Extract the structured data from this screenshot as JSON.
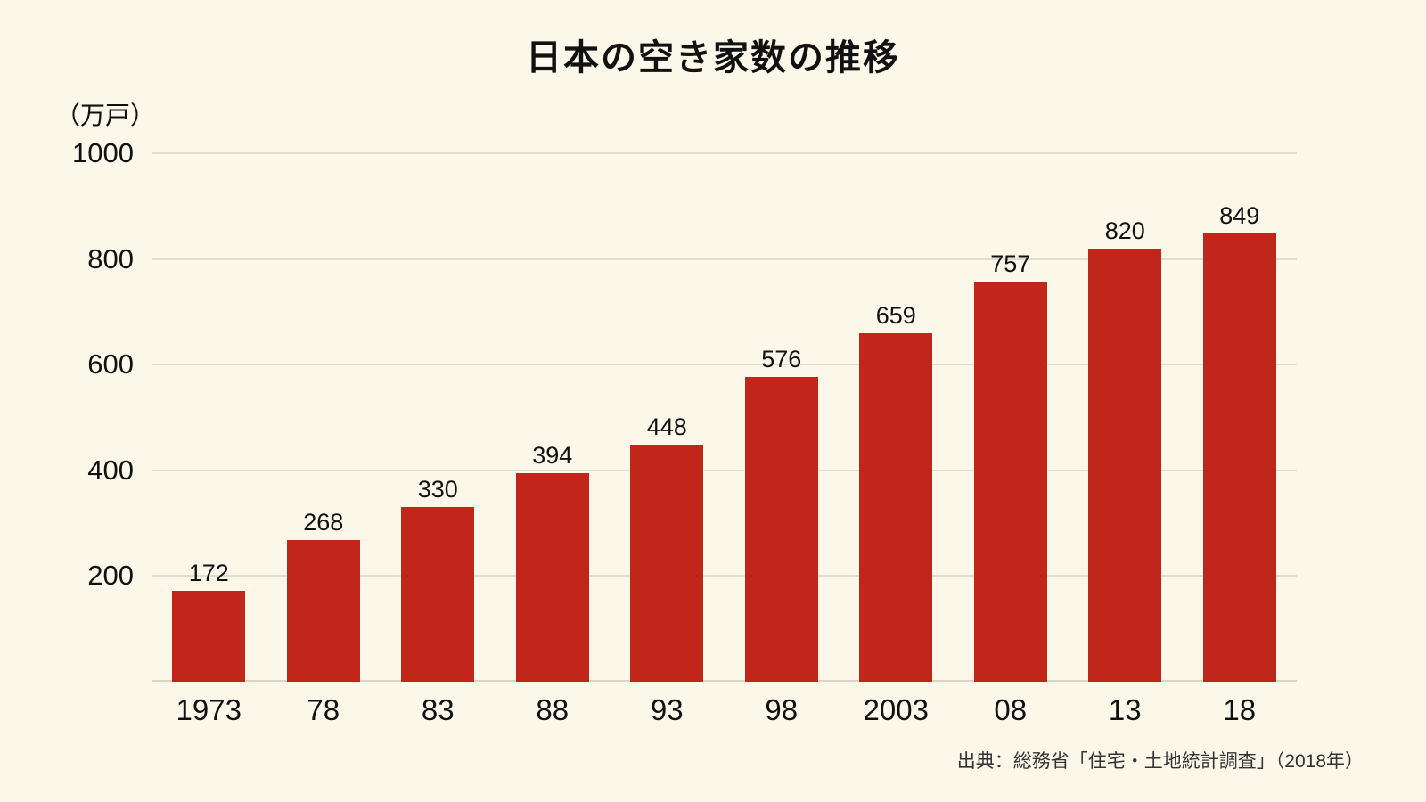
{
  "title": "日本の空き家数の推移",
  "unit_label": "（万戸）",
  "source": "出典：総務省「住宅・土地統計調査」（2018年）",
  "colors": {
    "bar": "#c0271a",
    "background": "#fbf7e9",
    "gridline": "#e2decf",
    "text": "#111111"
  },
  "chart_data": {
    "type": "bar",
    "categories": [
      "1973",
      "78",
      "83",
      "88",
      "93",
      "98",
      "2003",
      "08",
      "13",
      "18"
    ],
    "values": [
      172,
      268,
      330,
      394,
      448,
      576,
      659,
      757,
      820,
      849
    ],
    "title": "日本の空き家数の推移",
    "xlabel": "",
    "ylabel": "（万戸）",
    "ylim": [
      0,
      1000
    ],
    "yticks": [
      200,
      400,
      600,
      800,
      1000
    ],
    "grid": true,
    "legend": "none",
    "source": "出典：総務省「住宅・土地統計調査」（2018年）"
  }
}
